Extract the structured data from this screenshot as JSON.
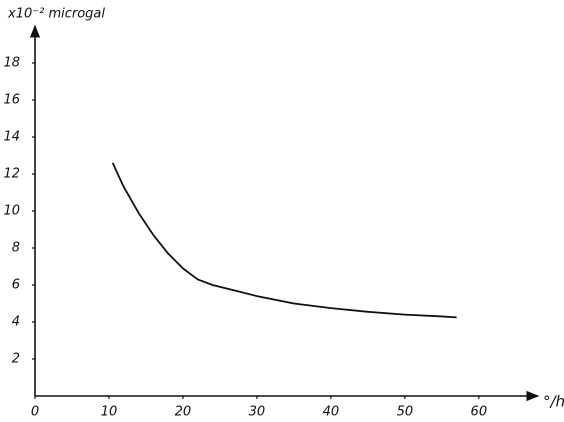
{
  "chart_data": {
    "type": "line",
    "y_label": "x10⁻² microgal",
    "x_label": "°/h",
    "x": [
      10.5,
      12,
      14,
      16,
      18,
      20,
      22,
      24,
      27,
      30,
      35,
      40,
      45,
      50,
      55,
      57
    ],
    "values": [
      12.6,
      11.3,
      9.9,
      8.7,
      7.7,
      6.9,
      6.3,
      6.0,
      5.7,
      5.4,
      5.0,
      4.75,
      4.55,
      4.4,
      4.3,
      4.25
    ],
    "color": "#111111",
    "xlim": [
      0,
      68
    ],
    "ylim": [
      0,
      20
    ],
    "xticks": [
      0,
      10,
      20,
      30,
      40,
      50,
      60
    ],
    "yticks": [
      2,
      4,
      6,
      8,
      10,
      12,
      14,
      16,
      18
    ],
    "grid": false
  }
}
